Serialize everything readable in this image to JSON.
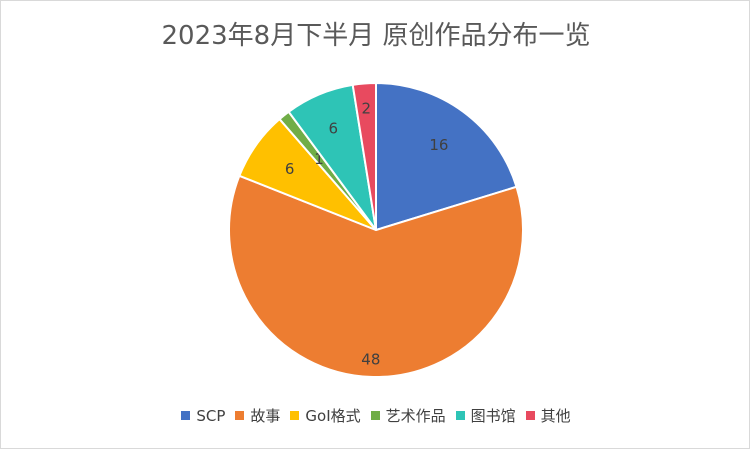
{
  "chart_data": {
    "type": "pie",
    "title": "2023年8月下半月 原创作品分布一览",
    "categories": [
      "SCP",
      "故事",
      "GoI格式",
      "艺术作品",
      "图书馆",
      "其他"
    ],
    "values": [
      16,
      48,
      6,
      1,
      6,
      2
    ],
    "colors": [
      "#4472c4",
      "#ed7d31",
      "#ffc000",
      "#70ad47",
      "#2ec4b6",
      "#e84a5f"
    ],
    "start_angle": "12 o'clock",
    "direction": "clockwise",
    "legend_position": "bottom",
    "data_labels": true
  }
}
